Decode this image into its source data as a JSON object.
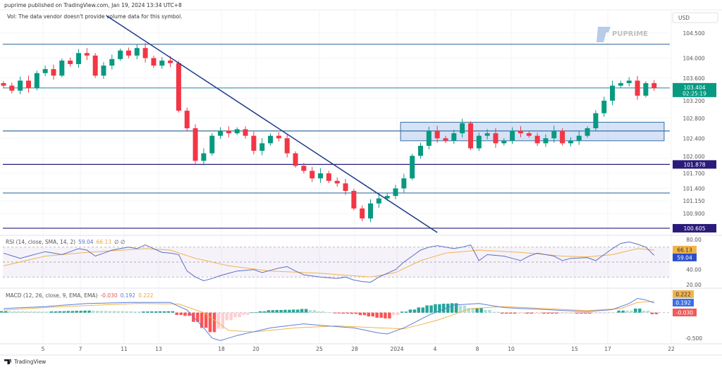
{
  "header": {
    "published": "puprime published on TradingView.com, Jan 19, 2024 13:34 UTC+8",
    "volume_note": "Vol: The data vendor doesn't provide volume data for this symbol."
  },
  "watermark": "PUPRIME",
  "currency": "USD",
  "footer": {
    "brand": "TradingView"
  },
  "colors": {
    "up": "#089981",
    "down": "#f23645",
    "trend": "#1e3a8a",
    "level": "#3b6fa0",
    "key_level": "#2a1a7a",
    "rsi": "#5b6fc7",
    "rsi_ma": "#f0b44c",
    "macd": "#5b7fd6",
    "signal": "#f0b44c"
  },
  "chart_data": {
    "type": "candlestick",
    "price_pane": {
      "ylim": [
        100.52,
        104.99
      ],
      "ticks": [
        "104.500",
        "104.000",
        "103.600",
        "103.200",
        "102.800",
        "102.400",
        "102.000",
        "101.700",
        "101.400",
        "101.150",
        "100.900"
      ],
      "closes": [
        103.45,
        103.35,
        103.55,
        103.4,
        103.7,
        103.78,
        103.65,
        103.95,
        103.88,
        104.1,
        104.05,
        103.65,
        103.85,
        103.98,
        104.15,
        104.05,
        104.2,
        104.0,
        103.85,
        103.95,
        103.9,
        102.95,
        102.6,
        101.95,
        102.1,
        102.45,
        102.55,
        102.5,
        102.58,
        102.45,
        102.15,
        102.3,
        102.45,
        102.4,
        102.1,
        101.85,
        101.75,
        101.6,
        101.7,
        101.55,
        101.5,
        101.35,
        101.0,
        100.8,
        101.1,
        101.2,
        101.25,
        101.4,
        101.6,
        102.05,
        102.25,
        102.55,
        102.4,
        102.35,
        102.5,
        102.7,
        102.2,
        102.45,
        102.5,
        102.3,
        102.35,
        102.55,
        102.5,
        102.45,
        102.3,
        102.4,
        102.55,
        102.3,
        102.35,
        102.45,
        102.6,
        102.9,
        103.15,
        103.45,
        103.5,
        103.55,
        103.25,
        103.5,
        103.4
      ],
      "horizontal_levels": [
        {
          "value": 104.276,
          "kind": "level"
        },
        {
          "value": 102.546,
          "kind": "level"
        },
        {
          "value": 101.308,
          "kind": "level"
        },
        {
          "value": 101.878,
          "kind": "key",
          "label": "101.878"
        },
        {
          "value": 100.605,
          "kind": "key",
          "label": "100.605"
        }
      ],
      "current_price": {
        "value": 103.404,
        "label": "103.404",
        "countdown": "02:25:19"
      },
      "trendline": {
        "from": [
          12.3,
          104.85
        ],
        "to": [
          52.0,
          100.52
        ]
      },
      "consolidation_box": {
        "x_range": [
          47.6,
          79.2
        ],
        "y_range": [
          102.35,
          102.72
        ]
      }
    },
    "rsi": {
      "title": "RSI (14, close, SMA, 14, 2)",
      "value": "59.04",
      "ma_value": "66.13",
      "extra": "∅ ∅",
      "ylim": [
        17,
        83
      ],
      "ticks": [
        "80.00",
        "40.00",
        "20.00"
      ],
      "bands": [
        70,
        50,
        30
      ],
      "rsi": [
        [
          0,
          62
        ],
        [
          2,
          55
        ],
        [
          3,
          58
        ],
        [
          5,
          64
        ],
        [
          7,
          60
        ],
        [
          9,
          68
        ],
        [
          10,
          66
        ],
        [
          11,
          58
        ],
        [
          13,
          66
        ],
        [
          15,
          70
        ],
        [
          16,
          68
        ],
        [
          17,
          73
        ],
        [
          19,
          63
        ],
        [
          20,
          62
        ],
        [
          21,
          60
        ],
        [
          22,
          38
        ],
        [
          23,
          30
        ],
        [
          24,
          25
        ],
        [
          25,
          28
        ],
        [
          26,
          32
        ],
        [
          28,
          38
        ],
        [
          30,
          40
        ],
        [
          31,
          36
        ],
        [
          33,
          42
        ],
        [
          34,
          44
        ],
        [
          35,
          38
        ],
        [
          36,
          33
        ],
        [
          38,
          30
        ],
        [
          40,
          28
        ],
        [
          41,
          30
        ],
        [
          42,
          26
        ],
        [
          43,
          24
        ],
        [
          44,
          23
        ],
        [
          45,
          30
        ],
        [
          46,
          35
        ],
        [
          47,
          40
        ],
        [
          48,
          50
        ],
        [
          49,
          58
        ],
        [
          50,
          66
        ],
        [
          51,
          70
        ],
        [
          52,
          72
        ],
        [
          54,
          68
        ],
        [
          55,
          70
        ],
        [
          56,
          73
        ],
        [
          57,
          52
        ],
        [
          58,
          60
        ],
        [
          60,
          58
        ],
        [
          62,
          52
        ],
        [
          63,
          58
        ],
        [
          64,
          62
        ],
        [
          66,
          58
        ],
        [
          67,
          52
        ],
        [
          68,
          55
        ],
        [
          70,
          56
        ],
        [
          71,
          52
        ],
        [
          72,
          60
        ],
        [
          73,
          68
        ],
        [
          74,
          75
        ],
        [
          75,
          77
        ],
        [
          76,
          74
        ],
        [
          77,
          70
        ],
        [
          77.5,
          58
        ],
        [
          78,
          59.04
        ]
      ],
      "ma": [
        [
          0,
          45
        ],
        [
          5,
          58
        ],
        [
          10,
          63
        ],
        [
          17,
          68
        ],
        [
          20,
          66
        ],
        [
          23,
          55
        ],
        [
          27,
          45
        ],
        [
          32,
          38
        ],
        [
          38,
          35
        ],
        [
          44,
          30
        ],
        [
          47,
          36
        ],
        [
          50,
          52
        ],
        [
          53,
          62
        ],
        [
          57,
          66
        ],
        [
          62,
          63
        ],
        [
          67,
          58
        ],
        [
          70,
          57
        ],
        [
          73,
          60
        ],
        [
          76,
          68
        ],
        [
          78,
          66.13
        ]
      ]
    },
    "macd": {
      "title": "MACD (12, 26, close, 9, EMA, EMA)",
      "hist_value": "-0.030",
      "macd_value": "0.192",
      "signal_value": "0.222",
      "ylim": [
        -0.6,
        0.44
      ],
      "ticks": [
        "-0.500"
      ],
      "macd": [
        [
          0,
          0.08
        ],
        [
          5,
          0.12
        ],
        [
          10,
          0.18
        ],
        [
          15,
          0.2
        ],
        [
          20,
          0.2
        ],
        [
          22,
          0.05
        ],
        [
          24,
          -0.3
        ],
        [
          25,
          -0.5
        ],
        [
          26,
          -0.55
        ],
        [
          28,
          -0.45
        ],
        [
          32,
          -0.3
        ],
        [
          36,
          -0.22
        ],
        [
          38,
          -0.25
        ],
        [
          42,
          -0.3
        ],
        [
          45,
          -0.4
        ],
        [
          46,
          -0.42
        ],
        [
          48,
          -0.3
        ],
        [
          51,
          -0.05
        ],
        [
          54,
          0.15
        ],
        [
          57,
          0.18
        ],
        [
          60,
          0.1
        ],
        [
          65,
          0.06
        ],
        [
          70,
          0.02
        ],
        [
          73,
          0.06
        ],
        [
          75,
          0.18
        ],
        [
          76,
          0.28
        ],
        [
          77,
          0.25
        ],
        [
          78,
          0.192
        ]
      ],
      "signal": [
        [
          0,
          0.05
        ],
        [
          5,
          0.1
        ],
        [
          10,
          0.14
        ],
        [
          16,
          0.18
        ],
        [
          21,
          0.17
        ],
        [
          24,
          0.0
        ],
        [
          27,
          -0.35
        ],
        [
          30,
          -0.38
        ],
        [
          35,
          -0.3
        ],
        [
          40,
          -0.26
        ],
        [
          45,
          -0.3
        ],
        [
          48,
          -0.32
        ],
        [
          52,
          -0.15
        ],
        [
          56,
          0.08
        ],
        [
          60,
          0.12
        ],
        [
          65,
          0.08
        ],
        [
          70,
          0.04
        ],
        [
          74,
          0.08
        ],
        [
          76,
          0.2
        ],
        [
          78,
          0.222
        ]
      ]
    },
    "x_axis": {
      "labels": [
        "5",
        "7",
        "11",
        "13",
        "18",
        "20",
        "25",
        "28",
        "2024",
        "4",
        "8",
        "10",
        "15",
        "17",
        "22"
      ]
    }
  }
}
